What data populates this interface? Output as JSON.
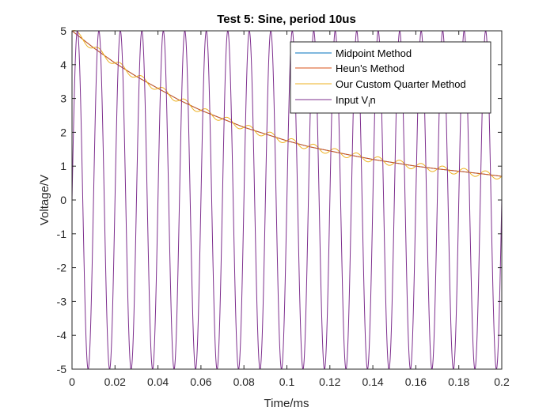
{
  "chart_data": {
    "type": "line",
    "title": "Test 5: Sine, period 10us",
    "xlabel": "Time/ms",
    "ylabel": "Voltage/V",
    "xlim": [
      0,
      0.2
    ],
    "ylim": [
      -5,
      5
    ],
    "xticks": [
      "0",
      "0.02",
      "0.04",
      "0.06",
      "0.08",
      "0.1",
      "0.12",
      "0.14",
      "0.16",
      "0.18",
      "0.2"
    ],
    "yticks": [
      "5",
      "4",
      "3",
      "2",
      "1",
      "0",
      "-1",
      "-2",
      "-3",
      "-4",
      "-5"
    ],
    "grid": false,
    "legend_position": "top-right",
    "input": {
      "waveform": "sine",
      "amplitude": 5,
      "period_ms": 0.01
    },
    "series": [
      {
        "name": "Midpoint Method",
        "color": "#0072BD",
        "x": [
          0,
          0.01,
          0.02,
          0.03,
          0.04,
          0.05,
          0.06,
          0.07,
          0.08,
          0.09,
          0.1,
          0.11,
          0.12,
          0.13,
          0.14,
          0.15,
          0.16,
          0.17,
          0.18,
          0.19,
          0.2
        ],
        "y": [
          5.0,
          4.5,
          4.05,
          3.65,
          3.3,
          2.95,
          2.65,
          2.4,
          2.15,
          1.95,
          1.75,
          1.58,
          1.45,
          1.32,
          1.2,
          1.1,
          1.0,
          0.92,
          0.85,
          0.78,
          0.7
        ]
      },
      {
        "name": "Heun's Method",
        "color": "#D95319",
        "x": [
          0,
          0.01,
          0.02,
          0.03,
          0.04,
          0.05,
          0.06,
          0.07,
          0.08,
          0.09,
          0.1,
          0.11,
          0.12,
          0.13,
          0.14,
          0.15,
          0.16,
          0.17,
          0.18,
          0.19,
          0.2
        ],
        "y": [
          5.0,
          4.5,
          4.05,
          3.65,
          3.3,
          2.95,
          2.65,
          2.4,
          2.15,
          1.95,
          1.75,
          1.58,
          1.45,
          1.32,
          1.2,
          1.1,
          1.0,
          0.92,
          0.85,
          0.78,
          0.7
        ]
      },
      {
        "name": "Our Custom Quarter Method",
        "color": "#EDB120",
        "ripple_amplitude": 0.1,
        "x": [
          0,
          0.01,
          0.02,
          0.03,
          0.04,
          0.05,
          0.06,
          0.07,
          0.08,
          0.09,
          0.1,
          0.11,
          0.12,
          0.13,
          0.14,
          0.15,
          0.16,
          0.17,
          0.18,
          0.19,
          0.2
        ],
        "y": [
          5.0,
          4.5,
          4.05,
          3.65,
          3.3,
          2.95,
          2.65,
          2.4,
          2.15,
          1.95,
          1.75,
          1.58,
          1.45,
          1.32,
          1.2,
          1.1,
          1.0,
          0.92,
          0.85,
          0.78,
          0.7
        ]
      },
      {
        "name": "Input V_in",
        "legend_main": "Input V",
        "legend_sub": "i",
        "legend_tail": "n",
        "color": "#7E2F8E",
        "x": [
          0,
          0.0025,
          0.005,
          0.0075,
          0.01
        ],
        "y": [
          0,
          5,
          0,
          -5,
          0
        ]
      }
    ]
  }
}
